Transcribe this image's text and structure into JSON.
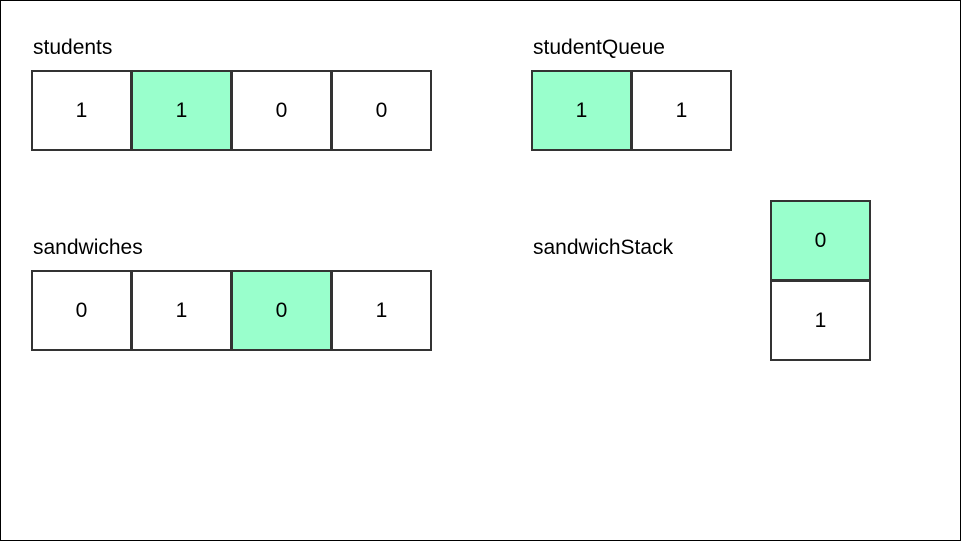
{
  "highlight_color": "#99ffcc",
  "students": {
    "label": "students",
    "cells": [
      "1",
      "1",
      "0",
      "0"
    ],
    "highlighted_index": 1
  },
  "student_queue": {
    "label": "studentQueue",
    "cells": [
      "1",
      "1"
    ],
    "highlighted_index": 0
  },
  "sandwiches": {
    "label": "sandwiches",
    "cells": [
      "0",
      "1",
      "0",
      "1"
    ],
    "highlighted_index": 2
  },
  "sandwich_stack": {
    "label": "sandwichStack",
    "cells": [
      "0",
      "1"
    ],
    "highlighted_index": 0
  }
}
